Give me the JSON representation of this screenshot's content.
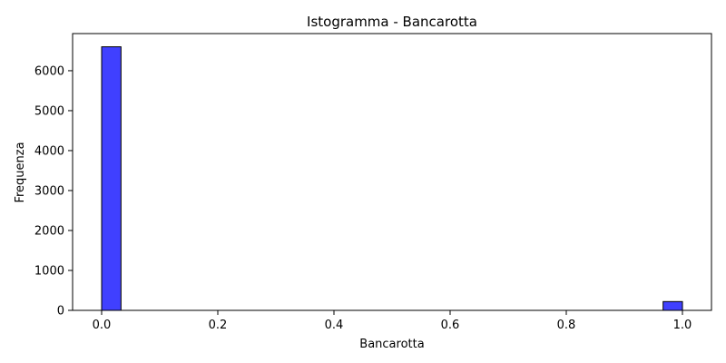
{
  "chart_data": {
    "type": "bar",
    "title": "Istogramma - Bancarotta",
    "xlabel": "Bancarotta",
    "ylabel": "Frequenza",
    "xlim": [
      -0.05,
      1.05
    ],
    "ylim": [
      0,
      6930
    ],
    "xticks": [
      0.0,
      0.2,
      0.4,
      0.6,
      0.8,
      1.0
    ],
    "xtick_labels": [
      "0.0",
      "0.2",
      "0.4",
      "0.6",
      "0.8",
      "1.0"
    ],
    "yticks": [
      0,
      1000,
      2000,
      3000,
      4000,
      5000,
      6000
    ],
    "ytick_labels": [
      "0",
      "1000",
      "2000",
      "3000",
      "4000",
      "5000",
      "6000"
    ],
    "bin_width": 0.03333,
    "bins": [
      {
        "x": 0.0,
        "count": 6599
      },
      {
        "x": 0.9667,
        "count": 220
      }
    ],
    "grid": false,
    "bar_color": "#4040ff",
    "edge_color": "#000000"
  }
}
